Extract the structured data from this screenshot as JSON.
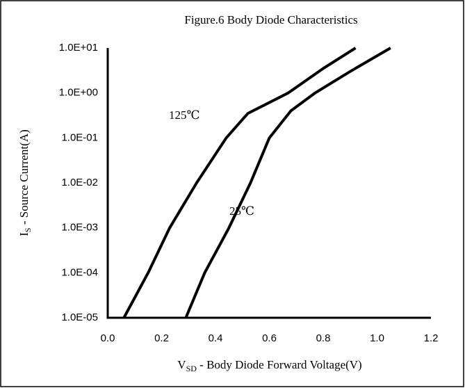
{
  "chart_data": {
    "type": "line",
    "title": "Figure.6 Body Diode Characteristics",
    "xlabel": [
      "V",
      "SD",
      " - Body Diode Forward Voltage(V)"
    ],
    "ylabel": [
      "I",
      "S",
      " - Source Current(A)"
    ],
    "log_y": true,
    "grid": false,
    "xlim": [
      0,
      1.2
    ],
    "ylim": [
      1e-05,
      10
    ],
    "xticks": [
      {
        "value": 0,
        "label": "0.0"
      },
      0.2,
      0.4,
      0.6,
      0.8,
      {
        "value": 1,
        "label": "1.0"
      },
      1.2
    ],
    "yticks": [
      {
        "value": 1e-05,
        "label": "1.0E-05"
      },
      {
        "value": 0.0001,
        "label": "1.0E-04"
      },
      {
        "value": 0.001,
        "label": "1.0E-03"
      },
      {
        "value": 0.01,
        "label": "1.0E-02"
      },
      {
        "value": 0.1,
        "label": "1.0E-01"
      },
      {
        "value": 1,
        "label": "1.0E+00"
      },
      {
        "value": 10,
        "label": "1.0E+01"
      }
    ],
    "series": [
      {
        "name": "125℃",
        "color": "#000000",
        "x": [
          0.06,
          0.15,
          0.23,
          0.33,
          0.44,
          0.52,
          0.67,
          0.8,
          0.92
        ],
        "values": [
          1e-05,
          0.0001,
          0.001,
          0.01,
          0.1,
          0.35,
          1,
          3.5,
          10
        ]
      },
      {
        "name": "25℃",
        "color": "#000000",
        "x": [
          0.29,
          0.36,
          0.45,
          0.53,
          0.6,
          0.68,
          0.77,
          0.9,
          1.05
        ],
        "values": [
          1e-05,
          0.0001,
          0.001,
          0.01,
          0.1,
          0.4,
          1,
          3,
          10
        ]
      }
    ]
  }
}
